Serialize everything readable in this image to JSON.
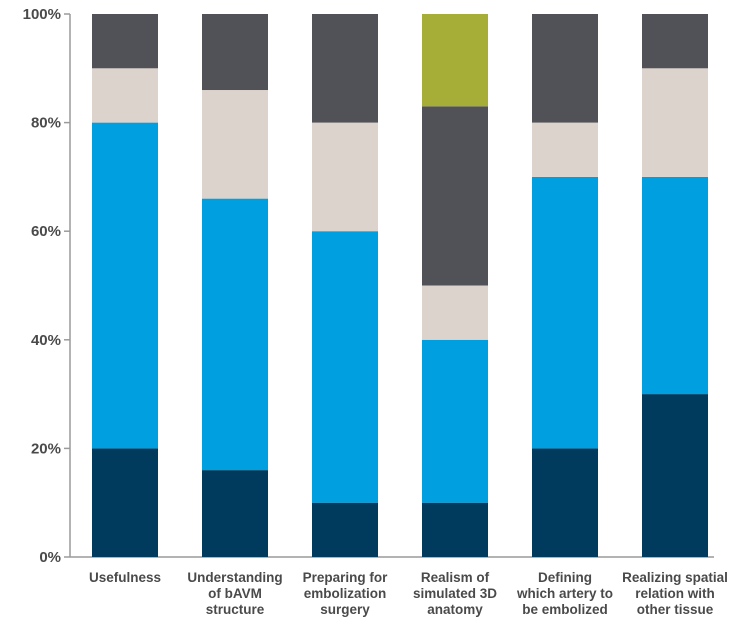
{
  "chart_data": {
    "type": "bar",
    "stacked": true,
    "title": "",
    "xlabel": "",
    "ylabel": "",
    "ylim": [
      0,
      100
    ],
    "y_ticks": [
      "0%",
      "20%",
      "40%",
      "60%",
      "80%",
      "100%"
    ],
    "grid": false,
    "categories": [
      "Usefulness",
      "Understanding of bAVM structure",
      "Preparing for embolization surgery",
      "Realism of simulated 3D anatomy",
      "Defining which artery to be embolized",
      "Realizing spatial relation with other tissue"
    ],
    "category_lines": [
      [
        "Usefulness"
      ],
      [
        "Understanding",
        "of bAVM",
        "structure"
      ],
      [
        "Preparing for",
        "embolization",
        "surgery"
      ],
      [
        "Realism of",
        "simulated 3D",
        "anatomy"
      ],
      [
        "Defining",
        "which artery to",
        "be embolized"
      ],
      [
        "Realizing spatial",
        "relation with",
        "other tissue"
      ]
    ],
    "series": [
      {
        "color": "#003a5c",
        "values": [
          20,
          16,
          10,
          10,
          20,
          30
        ]
      },
      {
        "color": "#009fdf",
        "values": [
          60,
          50,
          50,
          30,
          50,
          40
        ]
      },
      {
        "color": "#dcd3cd",
        "values": [
          10,
          20,
          20,
          10,
          10,
          20
        ]
      },
      {
        "color": "#515257",
        "values": [
          10,
          14,
          20,
          33,
          20,
          10
        ]
      },
      {
        "color": "#a7ae38",
        "values": [
          0,
          0,
          0,
          17,
          0,
          0
        ]
      }
    ]
  }
}
